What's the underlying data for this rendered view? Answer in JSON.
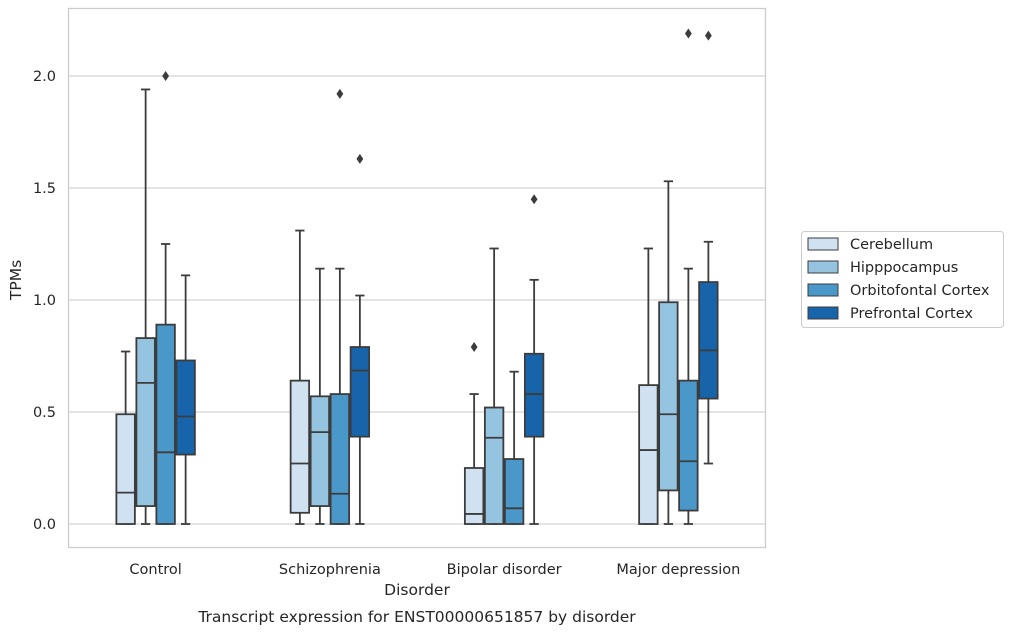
{
  "chart_data": {
    "type": "box",
    "title": "",
    "caption": "Transcript expression for ENST00000651857 by disorder",
    "xlabel": "Disorder",
    "ylabel": "TPMs",
    "ylim": [
      -0.1,
      2.3
    ],
    "yticks": [
      0.0,
      0.5,
      1.0,
      1.5,
      2.0
    ],
    "ytick_labels": [
      "0.0",
      "0.5",
      "1.0",
      "1.5",
      "2.0"
    ],
    "grid": "horizontal",
    "legend_position": "right",
    "categories": [
      "Control",
      "Schizophrenia",
      "Bipolar disorder",
      "Major depression"
    ],
    "series": [
      {
        "name": "Cerebellum",
        "color": "#d0e1f2",
        "boxes": [
          {
            "min": 0.0,
            "q1": 0.0,
            "median": 0.14,
            "q3": 0.49,
            "max": 0.77,
            "outliers": []
          },
          {
            "min": 0.0,
            "q1": 0.05,
            "median": 0.27,
            "q3": 0.64,
            "max": 1.31,
            "outliers": []
          },
          {
            "min": 0.0,
            "q1": 0.0,
            "median": 0.045,
            "q3": 0.25,
            "max": 0.58,
            "outliers": [
              0.79
            ]
          },
          {
            "min": 0.0,
            "q1": 0.0,
            "median": 0.33,
            "q3": 0.62,
            "max": 1.23,
            "outliers": []
          }
        ]
      },
      {
        "name": "Hipppocampus",
        "color": "#94c4df",
        "boxes": [
          {
            "min": 0.0,
            "q1": 0.08,
            "median": 0.63,
            "q3": 0.83,
            "max": 1.94,
            "outliers": []
          },
          {
            "min": 0.0,
            "q1": 0.08,
            "median": 0.41,
            "q3": 0.57,
            "max": 1.14,
            "outliers": []
          },
          {
            "min": 0.0,
            "q1": 0.0,
            "median": 0.385,
            "q3": 0.52,
            "max": 1.23,
            "outliers": []
          },
          {
            "min": 0.0,
            "q1": 0.15,
            "median": 0.49,
            "q3": 0.99,
            "max": 1.53,
            "outliers": []
          }
        ]
      },
      {
        "name": "Orbitofontal Cortex",
        "color": "#4a98c9",
        "boxes": [
          {
            "min": 0.0,
            "q1": 0.0,
            "median": 0.32,
            "q3": 0.89,
            "max": 1.25,
            "outliers": [
              2.0
            ]
          },
          {
            "min": 0.0,
            "q1": 0.0,
            "median": 0.135,
            "q3": 0.58,
            "max": 1.14,
            "outliers": [
              1.92
            ]
          },
          {
            "min": 0.0,
            "q1": 0.0,
            "median": 0.07,
            "q3": 0.29,
            "max": 0.68,
            "outliers": []
          },
          {
            "min": 0.0,
            "q1": 0.06,
            "median": 0.28,
            "q3": 0.64,
            "max": 1.14,
            "outliers": [
              2.19
            ]
          }
        ]
      },
      {
        "name": "Prefrontal Cortex",
        "color": "#1764ab",
        "boxes": [
          {
            "min": 0.0,
            "q1": 0.31,
            "median": 0.48,
            "q3": 0.73,
            "max": 1.11,
            "outliers": []
          },
          {
            "min": 0.0,
            "q1": 0.39,
            "median": 0.685,
            "q3": 0.79,
            "max": 1.02,
            "outliers": [
              1.63
            ]
          },
          {
            "min": 0.0,
            "q1": 0.39,
            "median": 0.58,
            "q3": 0.76,
            "max": 1.09,
            "outliers": [
              1.45
            ]
          },
          {
            "min": 0.27,
            "q1": 0.56,
            "median": 0.775,
            "q3": 1.08,
            "max": 1.26,
            "outliers": [
              2.18
            ]
          }
        ]
      }
    ]
  }
}
